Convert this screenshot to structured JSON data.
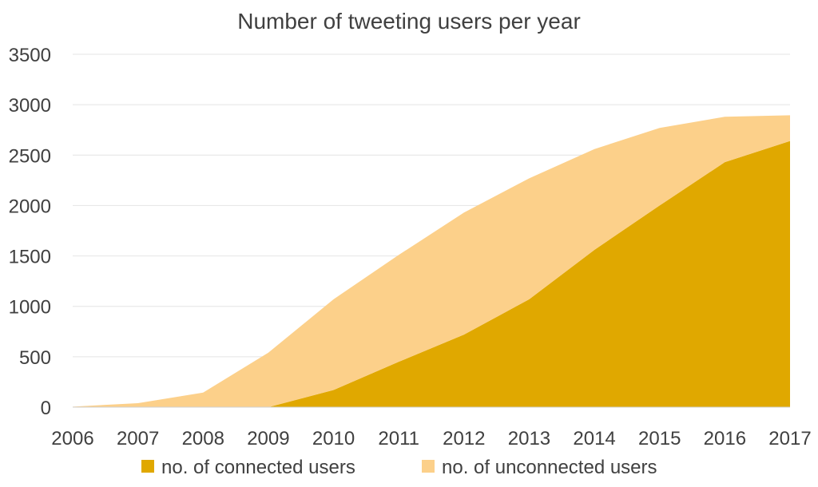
{
  "chart_data": {
    "type": "area",
    "stacked": true,
    "title": "Number of tweeting users per year",
    "xlabel": "",
    "ylabel": "",
    "x": [
      "2006",
      "2007",
      "2008",
      "2009",
      "2010",
      "2011",
      "2012",
      "2013",
      "2014",
      "2015",
      "2016",
      "2017"
    ],
    "ylim": [
      0,
      3500
    ],
    "yticks": [
      "0",
      "500",
      "1000",
      "1500",
      "2000",
      "2500",
      "3000",
      "3500"
    ],
    "grid": true,
    "legend_position": "bottom",
    "series": [
      {
        "name": "no. of connected users",
        "color": "#E0A800",
        "values": [
          0,
          0,
          0,
          0,
          170,
          450,
          720,
          1070,
          1560,
          2000,
          2430,
          2640
        ]
      },
      {
        "name": "no. of unconnected users",
        "color": "#FCD08A",
        "values": [
          5,
          40,
          145,
          540,
          900,
          1060,
          1210,
          1200,
          1000,
          770,
          450,
          255
        ]
      }
    ]
  }
}
